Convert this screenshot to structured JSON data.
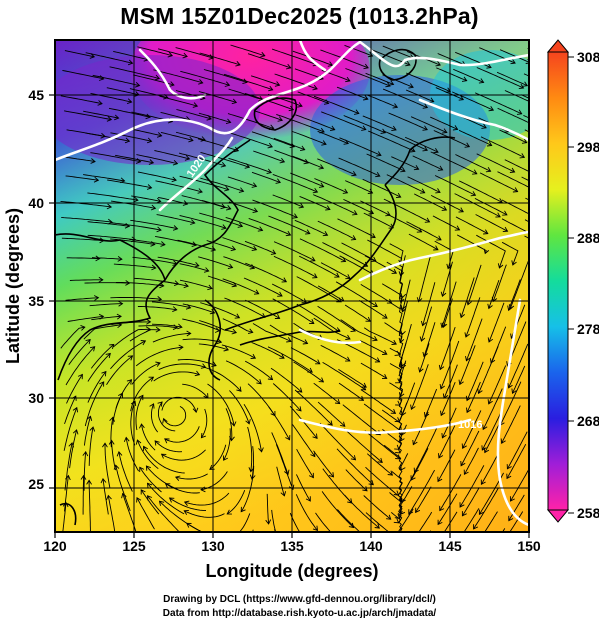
{
  "title": "MSM 15Z01Dec2025 (1013.2hPa)",
  "x_axis": {
    "label": "Longitude (degrees)",
    "ticks": [
      "120",
      "125",
      "130",
      "135",
      "140",
      "145",
      "150"
    ]
  },
  "y_axis": {
    "label": "Latitude  (degrees)",
    "ticks": [
      "25",
      "30",
      "35",
      "40",
      "45"
    ]
  },
  "colorbar": {
    "ticks": [
      "308",
      "298",
      "288",
      "278",
      "268",
      "258"
    ],
    "colors": [
      "#ff2da0",
      "#d61fd0",
      "#6a3ee6",
      "#1a2ce0",
      "#1e78f0",
      "#16c6e8",
      "#14e0b0",
      "#2ee050",
      "#9cee2e",
      "#e6f01e",
      "#ffd21c",
      "#ffaa14",
      "#ff7a10",
      "#f5441e"
    ]
  },
  "contour_labels": [
    "1020",
    "1016"
  ],
  "footer": {
    "line1": "Drawing by DCL (https://www.gfd-dennou.org/library/dcl/)",
    "line2": "Data from http://database.rish.kyoto-u.ac.jp/arch/jmadata/"
  }
}
